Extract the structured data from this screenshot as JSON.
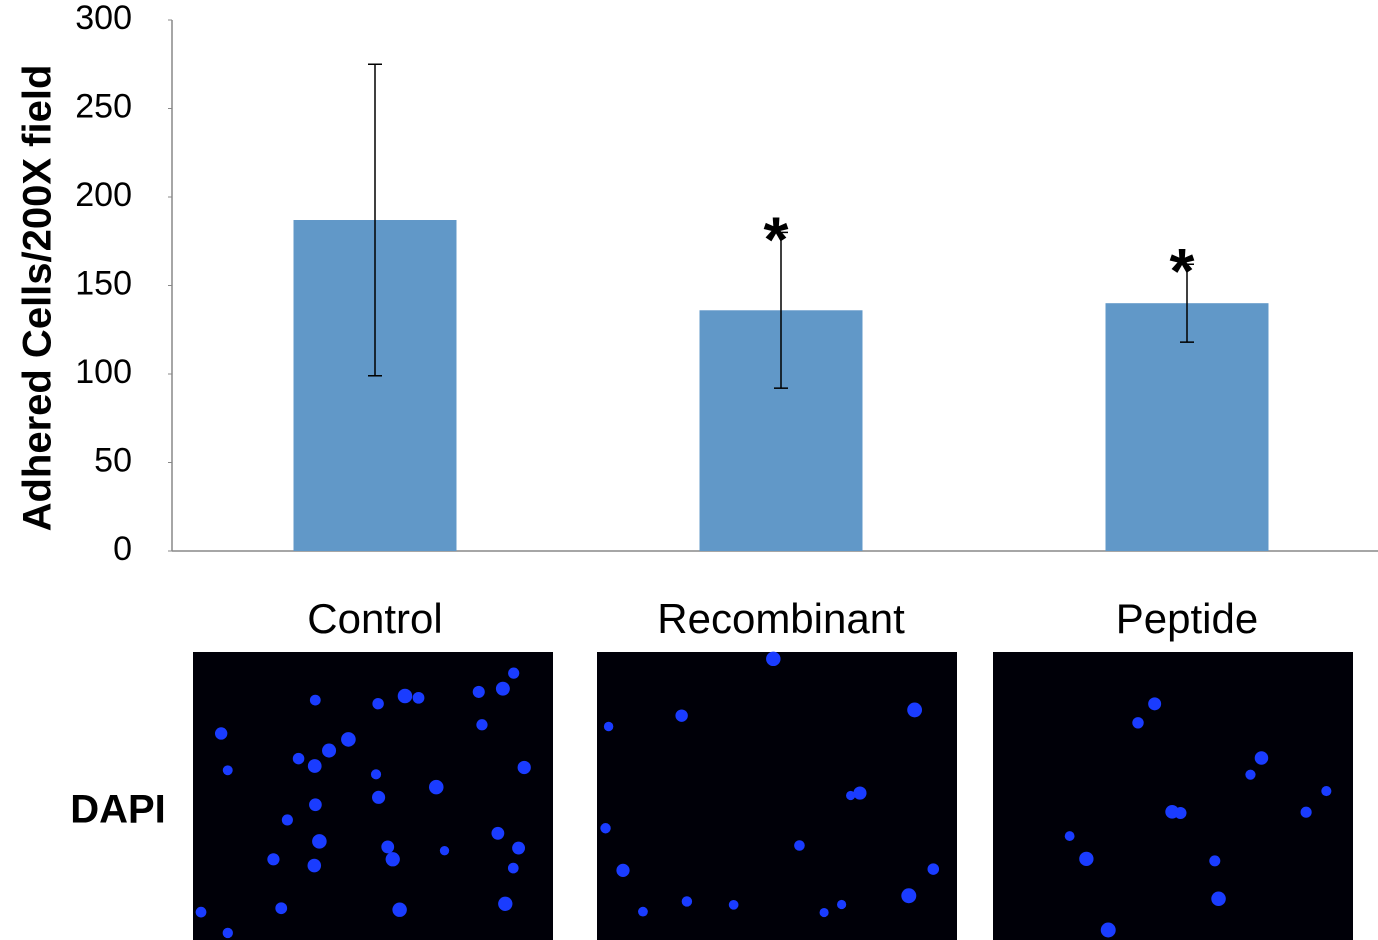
{
  "chart_data": {
    "type": "bar",
    "y_label": "Adhered Cells/200X field",
    "categories": [
      "Control",
      "Recombinant",
      "Peptide"
    ],
    "values": [
      187,
      136,
      140
    ],
    "errors": [
      88,
      44,
      22
    ],
    "significance": [
      null,
      "*",
      "*"
    ],
    "color": "#6198c8",
    "ylim": [
      0,
      300
    ],
    "yticks": [
      0,
      50,
      100,
      150,
      200,
      250,
      300
    ],
    "panel_label": "DAPI"
  }
}
